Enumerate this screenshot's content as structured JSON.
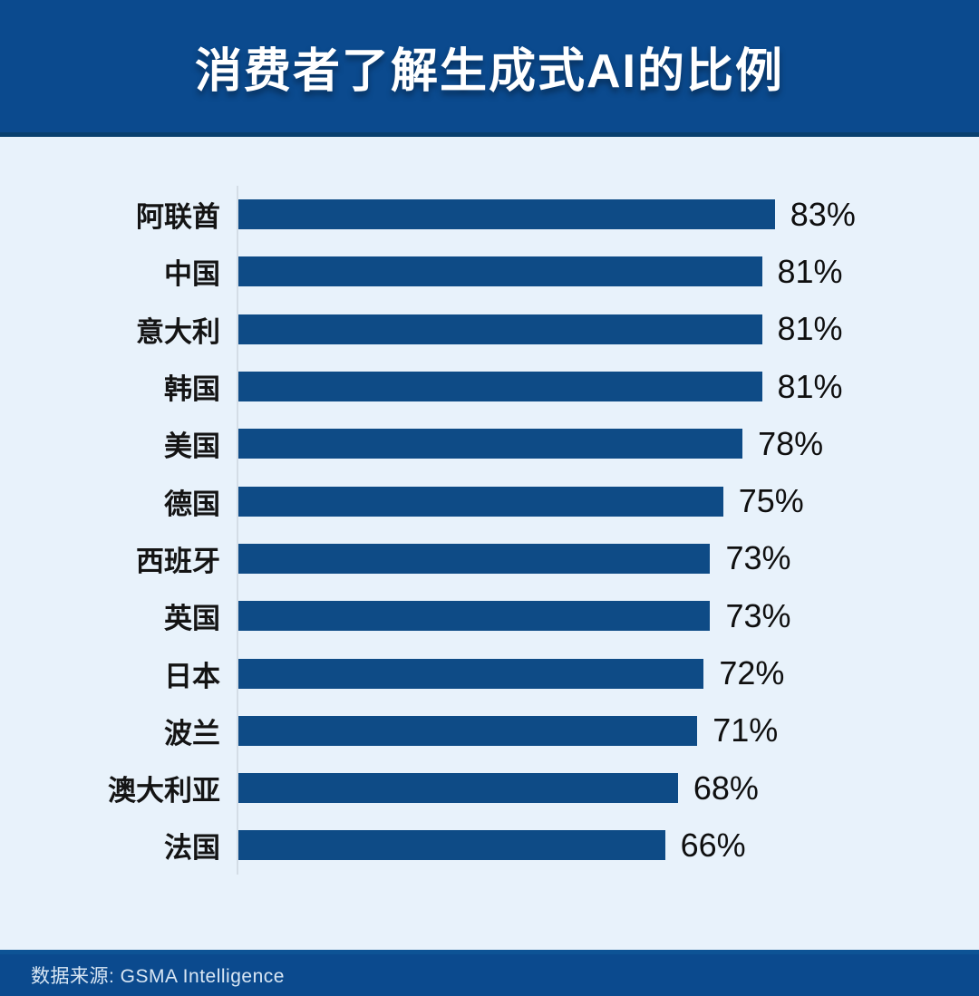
{
  "header": {
    "title": "消费者了解生成式AI的比例",
    "background": "#0b4a8e",
    "text_color": "#ffffff"
  },
  "footer": {
    "source_label": "数据来源: GSMA Intelligence",
    "background": "#0b4a8e",
    "text_color": "#d8e6f4"
  },
  "chart_data": {
    "type": "bar",
    "orientation": "horizontal",
    "title": "消费者了解生成式AI的比例",
    "categories": [
      "阿联酋",
      "中国",
      "意大利",
      "韩国",
      "美国",
      "德国",
      "西班牙",
      "英国",
      "日本",
      "波兰",
      "澳大利亚",
      "法国"
    ],
    "values": [
      83,
      81,
      81,
      81,
      78,
      75,
      73,
      73,
      72,
      71,
      68,
      66
    ],
    "value_suffix": "%",
    "xlabel": "",
    "ylabel": "",
    "xlim": [
      0,
      100
    ],
    "grid": false,
    "legend": "none",
    "value_labels": "outside-end",
    "bar_color": "#0e4b86",
    "axis_line_color": "#d4dde6",
    "background_color": "#e8f2fb",
    "source": "GSMA Intelligence"
  }
}
